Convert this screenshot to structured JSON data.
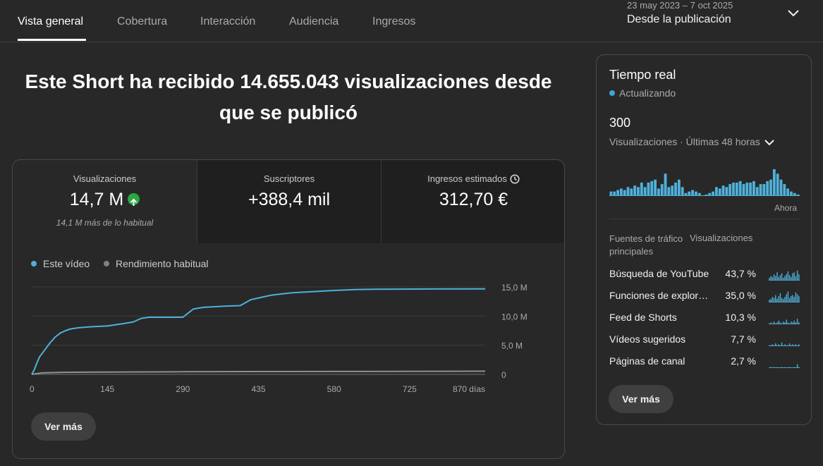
{
  "tabs": [
    {
      "label": "Vista general",
      "active": true
    },
    {
      "label": "Cobertura",
      "active": false
    },
    {
      "label": "Interacción",
      "active": false
    },
    {
      "label": "Audiencia",
      "active": false
    },
    {
      "label": "Ingresos",
      "active": false
    }
  ],
  "date_range": {
    "dates": "23 may 2023 – 7 oct 2025",
    "label": "Desde la publicación"
  },
  "headline": "Este Short ha recibido 14.655.043 visualizaciones desde que se publicó",
  "metrics": {
    "views": {
      "label": "Visualizaciones",
      "value": "14,7 M",
      "note": "14,1 M más de lo habitual"
    },
    "subs": {
      "label": "Suscriptores",
      "value": "+388,4 mil"
    },
    "revenue": {
      "label": "Ingresos estimados",
      "value": "312,70 €"
    }
  },
  "chart_legend": {
    "this_video": "Este vídeo",
    "typical": "Rendimiento habitual"
  },
  "chart_data": {
    "type": "line",
    "title": "",
    "xlabel": "días",
    "ylabel": "Visualizaciones",
    "x_ticks": [
      "0",
      "145",
      "290",
      "435",
      "580",
      "725",
      "870 días"
    ],
    "x_tick_values": [
      0,
      145,
      290,
      435,
      580,
      725,
      870
    ],
    "y_ticks": [
      "0",
      "5,0 M",
      "10,0 M",
      "15,0 M"
    ],
    "y_tick_values": [
      0,
      5,
      10,
      15
    ],
    "xlim": [
      0,
      870
    ],
    "ylim": [
      0,
      15
    ],
    "series": [
      {
        "name": "Este vídeo",
        "color": "#4fb0d9",
        "x": [
          0,
          5,
          10,
          15,
          25,
          35,
          45,
          55,
          65,
          75,
          90,
          105,
          120,
          145,
          160,
          175,
          195,
          210,
          225,
          240,
          260,
          290,
          300,
          310,
          330,
          350,
          370,
          400,
          420,
          440,
          460,
          480,
          500,
          540,
          580,
          620,
          660,
          700,
          740,
          780,
          870
        ],
        "y": [
          0,
          0.8,
          2.0,
          3.0,
          4.2,
          5.4,
          6.4,
          7.1,
          7.5,
          7.8,
          8.0,
          8.1,
          8.2,
          8.3,
          8.5,
          8.7,
          9.0,
          9.6,
          9.8,
          9.8,
          9.8,
          9.8,
          10.5,
          11.2,
          11.5,
          11.6,
          11.7,
          11.8,
          12.8,
          13.2,
          13.6,
          13.8,
          14.0,
          14.2,
          14.4,
          14.55,
          14.6,
          14.62,
          14.64,
          14.65,
          14.66
        ]
      },
      {
        "name": "Rendimiento habitual",
        "color": "#909090",
        "x": [
          0,
          20,
          60,
          145,
          290,
          435,
          580,
          725,
          870
        ],
        "y": [
          0,
          0.25,
          0.35,
          0.4,
          0.45,
          0.48,
          0.5,
          0.52,
          0.55
        ]
      }
    ],
    "legend": "top-left",
    "grid": true
  },
  "buttons": {
    "main_see_more": "Ver más",
    "rt_see_more": "Ver más"
  },
  "realtime": {
    "title": "Tiempo real",
    "status": "Actualizando",
    "count": "300",
    "subtitle": "Visualizaciones · Últimas 48 horas",
    "now_label": "Ahora",
    "bars": [
      6,
      6,
      8,
      10,
      8,
      12,
      10,
      14,
      12,
      18,
      12,
      18,
      20,
      22,
      10,
      16,
      30,
      12,
      14,
      18,
      22,
      12,
      4,
      6,
      8,
      6,
      4,
      0,
      2,
      4,
      6,
      12,
      10,
      14,
      12,
      16,
      18,
      18,
      20,
      16,
      18,
      18,
      20,
      12,
      16,
      16,
      20,
      22,
      36,
      30,
      22,
      16,
      10,
      6,
      4,
      2
    ],
    "traffic_header_col1": "Fuentes de tráfico principales",
    "traffic_header_col2": "Visualizaciones",
    "sources": [
      {
        "name": "Búsqueda de YouTube",
        "pct": "43,7 %",
        "spark": [
          3,
          5,
          4,
          7,
          5,
          9,
          4,
          6,
          8,
          3,
          5,
          7,
          10,
          6,
          4,
          8,
          9,
          5,
          11,
          7
        ]
      },
      {
        "name": "Funciones de exploración",
        "pct": "35,0 %",
        "spark": [
          3,
          4,
          6,
          5,
          8,
          4,
          7,
          10,
          5,
          4,
          6,
          9,
          12,
          5,
          7,
          8,
          6,
          11,
          9,
          7
        ]
      },
      {
        "name": "Feed de Shorts",
        "pct": "10,3 %",
        "spark": [
          1,
          2,
          1,
          3,
          1,
          2,
          4,
          2,
          1,
          3,
          2,
          5,
          2,
          1,
          3,
          2,
          4,
          2,
          6,
          2
        ]
      },
      {
        "name": "Vídeos sugeridos",
        "pct": "7,7 %",
        "spark": [
          1,
          1,
          2,
          1,
          3,
          1,
          2,
          1,
          4,
          1,
          2,
          1,
          1,
          3,
          1,
          2,
          1,
          2,
          1,
          2
        ]
      },
      {
        "name": "Páginas de canal",
        "pct": "2,7 %",
        "spark": [
          0,
          1,
          0,
          1,
          0,
          1,
          0,
          0,
          1,
          0,
          1,
          0,
          0,
          1,
          0,
          0,
          1,
          0,
          4,
          1
        ]
      }
    ]
  }
}
